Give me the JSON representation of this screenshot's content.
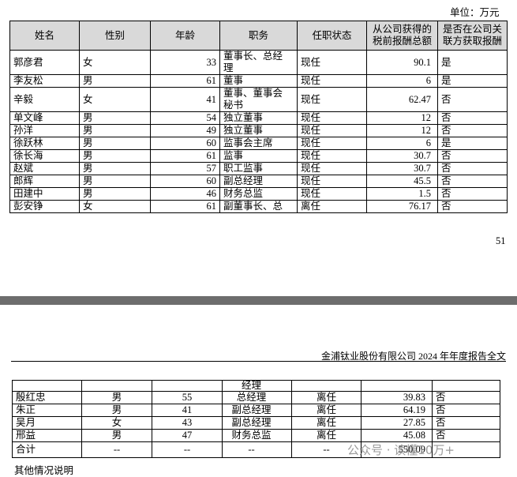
{
  "unit": "单位：万元",
  "table": {
    "header": [
      "姓名",
      "性别",
      "年龄",
      "职务",
      "任职状态",
      "从公司获得的税前报酬总额",
      "是否在公司关联方获取报酬"
    ],
    "rows": [
      [
        "郭彦君",
        "女",
        33,
        "董事长、总经理",
        "现任",
        90.1,
        "是"
      ],
      [
        "李友松",
        "男",
        61,
        "董事",
        "现任",
        6,
        "是"
      ],
      [
        "辛毅",
        "女",
        41,
        "董事、董事会秘书",
        "现任",
        62.47,
        "否"
      ],
      [
        "单文峰",
        "男",
        54,
        "独立董事",
        "现任",
        12,
        "否"
      ],
      [
        "孙洋",
        "男",
        49,
        "独立董事",
        "现任",
        12,
        "否"
      ],
      [
        "徐跃林",
        "男",
        60,
        "监事会主席",
        "现任",
        6,
        "是"
      ],
      [
        "徐长海",
        "男",
        61,
        "监事",
        "现任",
        30.7,
        "否"
      ],
      [
        "赵斌",
        "男",
        57,
        "职工监事",
        "现任",
        30.7,
        "否"
      ],
      [
        "郎辉",
        "男",
        60,
        "副总经理",
        "现任",
        45.5,
        "否"
      ],
      [
        "田建中",
        "男",
        46,
        "财务总监",
        "现任",
        1.5,
        "否"
      ],
      [
        "彭安铮",
        "女",
        61,
        "副董事长、总",
        "离任",
        76.17,
        "否"
      ]
    ]
  },
  "page_number": 51,
  "page2_header": "金浦钛业股份有限公司 2024 年年度报告全文",
  "table2": {
    "rows": [
      [
        null,
        null,
        null,
        "经理",
        null,
        null,
        null
      ],
      [
        "殷红忠",
        "男",
        55,
        "总经理",
        "离任",
        39.83,
        "否"
      ],
      [
        "朱正",
        "男",
        41,
        "副总经理",
        "离任",
        64.19,
        "否"
      ],
      [
        "吴月",
        "女",
        43,
        "副总经理",
        "离任",
        27.85,
        "否"
      ],
      [
        "邢益",
        "男",
        47,
        "财务总监",
        "离任",
        45.08,
        "否"
      ],
      [
        "合计",
        "--",
        "--",
        "--",
        "--",
        550.09,
        null
      ]
    ]
  },
  "footer_text": "其他情况说明",
  "watermark": "公众号 · 读懂10万+"
}
